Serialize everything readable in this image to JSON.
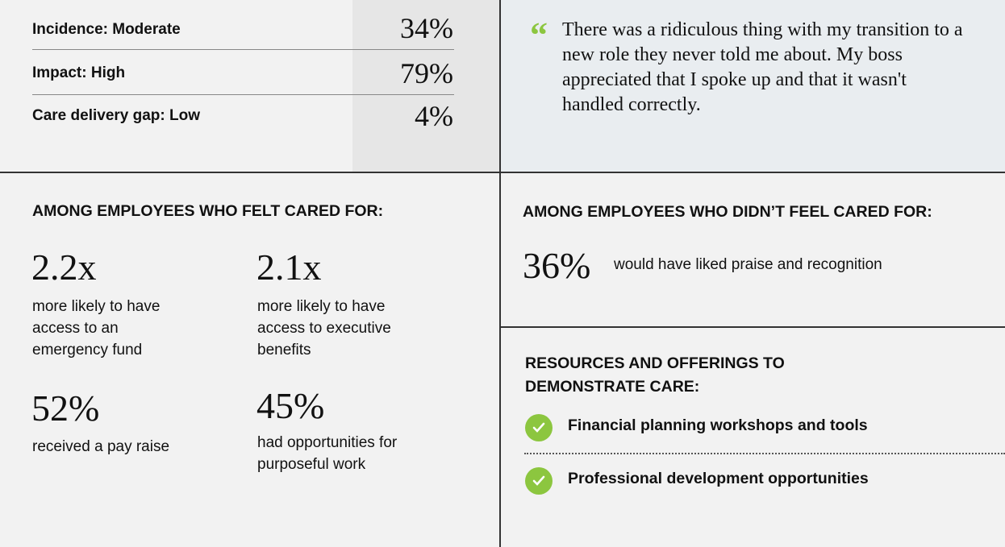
{
  "metrics": [
    {
      "label": "Incidence: Moderate",
      "value": "34%"
    },
    {
      "label": "Impact: High",
      "value": "79%"
    },
    {
      "label": "Care delivery gap: Low",
      "value": "4%"
    }
  ],
  "quote": {
    "mark": "“",
    "text": "There was a ridiculous thing with my transition to a new role they never told me about. My boss appreciated that I spoke up and that it wasn't handled correctly."
  },
  "cared": {
    "heading": "AMONG EMPLOYEES WHO FELT CARED FOR:",
    "stats": [
      {
        "value": "2.2x",
        "desc": "more likely to have access to an emergency fund"
      },
      {
        "value": "2.1x",
        "desc": "more likely to have access to executive benefits"
      },
      {
        "value": "52%",
        "desc": "received a pay raise"
      },
      {
        "value": "45%",
        "desc": "had opportunities for purposeful work"
      }
    ]
  },
  "not_cared": {
    "heading": "AMONG EMPLOYEES WHO DIDN’T FEEL CARED FOR:",
    "value": "36%",
    "desc": "would have liked praise and recognition"
  },
  "resources": {
    "heading": "RESOURCES AND OFFERINGS TO DEMONSTRATE CARE:",
    "items": [
      "Financial planning workshops and tools",
      "Professional development opportunities"
    ],
    "icon": "check-circle-icon",
    "accent": "#8cc63f"
  }
}
